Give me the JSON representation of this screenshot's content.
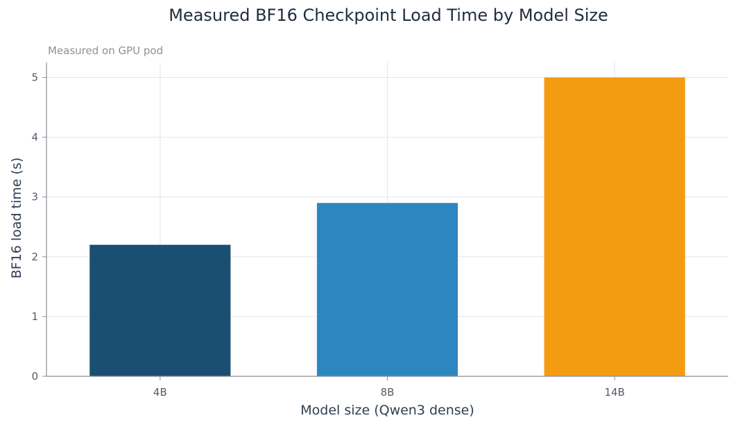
{
  "chart_data": {
    "type": "bar",
    "title": "Measured BF16 Checkpoint Load Time by Model Size",
    "subtitle": "Measured on GPU pod",
    "xlabel": "Model size (Qwen3 dense)",
    "ylabel": "BF16 load time (s)",
    "categories": [
      "4B",
      "8B",
      "14B"
    ],
    "values": [
      2.2,
      2.9,
      5.0
    ],
    "colors": [
      "#1a4f72",
      "#2e86c1",
      "#f39c12"
    ],
    "ylim": [
      0,
      5.25
    ],
    "yticks": [
      "0",
      "1",
      "2",
      "3",
      "4",
      "5"
    ],
    "grid": true
  }
}
